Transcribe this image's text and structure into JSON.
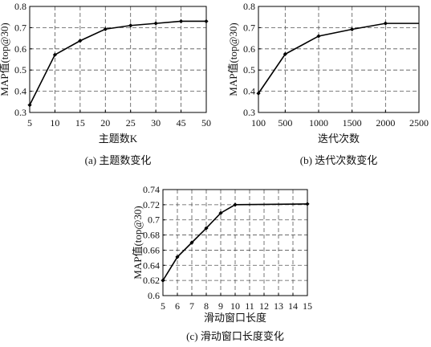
{
  "chart_data": [
    {
      "type": "line",
      "caption": "(a) 主题数变化",
      "xlabel": "主题数K",
      "ylabel": "MAP值(top@30)",
      "categories": [
        "5",
        "10",
        "15",
        "20",
        "25",
        "30",
        "45",
        "50"
      ],
      "values": [
        0.335,
        0.572,
        0.638,
        0.693,
        0.71,
        0.72,
        0.73,
        0.73
      ],
      "ylim": [
        0.3,
        0.8
      ],
      "yticks": [
        "0.3",
        "0.4",
        "0.5",
        "0.6",
        "0.7",
        "0.8"
      ],
      "grid": true,
      "marker": "diamond",
      "color": "#000000"
    },
    {
      "type": "line",
      "caption": "(b) 迭代次数变化",
      "xlabel": "迭代次数",
      "ylabel": "MAP值(top@30)",
      "x": [
        100,
        500,
        1000,
        1500,
        2000,
        2500
      ],
      "values": [
        0.39,
        0.575,
        0.66,
        0.692,
        0.72,
        0.72
      ],
      "marker_count": 5,
      "xticks": [
        "100",
        "500",
        "1000",
        "1500",
        "2000",
        "2500"
      ],
      "ylim": [
        0.3,
        0.8
      ],
      "yticks": [
        "0.3",
        "0.4",
        "0.5",
        "0.6",
        "0.7",
        "0.8"
      ],
      "grid": true,
      "marker": "diamond",
      "color": "#000000"
    },
    {
      "type": "line",
      "caption": "(c) 滑动窗口长度变化",
      "xlabel": "滑动窗口长度",
      "ylabel": "MAP值(top@30)",
      "x": [
        5,
        6,
        7,
        8,
        9,
        10,
        15
      ],
      "values": [
        0.62,
        0.651,
        0.67,
        0.689,
        0.709,
        0.72,
        0.721
      ],
      "xticks": [
        "5",
        "6",
        "7",
        "8",
        "9",
        "10",
        "11",
        "12",
        "13",
        "14",
        "15"
      ],
      "ylim": [
        0.6,
        0.74
      ],
      "yticks": [
        "0.6",
        "0.62",
        "0.64",
        "0.66",
        "0.68",
        "0.7",
        "0.72",
        "0.74"
      ],
      "grid": true,
      "marker": "diamond",
      "color": "#000000"
    }
  ]
}
